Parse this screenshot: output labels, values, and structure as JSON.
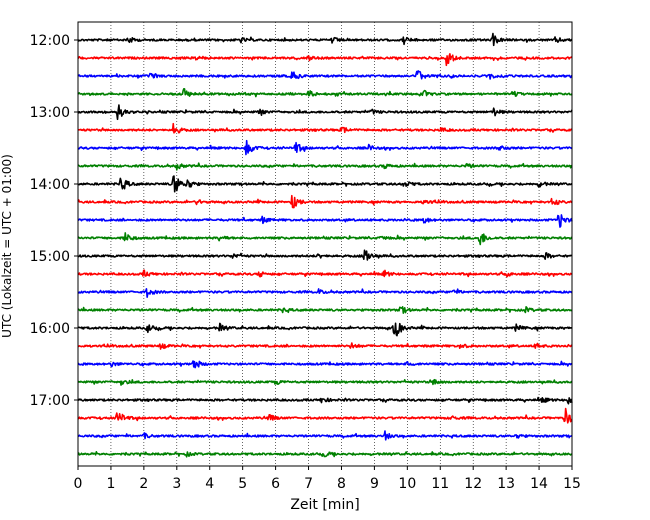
{
  "chart_data": {
    "type": "line",
    "title": "",
    "xlabel": "Zeit  [min]",
    "ylabel": "UTC (Lokalzeit = UTC + 01:00)",
    "xlim": [
      0,
      15
    ],
    "xticks": [
      0,
      1,
      2,
      3,
      4,
      5,
      6,
      7,
      8,
      9,
      10,
      11,
      12,
      13,
      14,
      15
    ],
    "yticks": [
      "12:00",
      "13:00",
      "14:00",
      "15:00",
      "16:00",
      "17:00"
    ],
    "grid": "vertical-dotted",
    "trace_interval_minutes": 15,
    "color_cycle": [
      "#000000",
      "#ff0000",
      "#0000ff",
      "#008000"
    ],
    "series": [
      {
        "start": "12:00",
        "color": "#000000",
        "events": [
          {
            "t": 1.5,
            "amp": 0.25
          },
          {
            "t": 4.9,
            "amp": 0.2
          },
          {
            "t": 7.7,
            "amp": 0.2
          },
          {
            "t": 9.9,
            "amp": 0.25
          },
          {
            "t": 12.6,
            "amp": 0.35
          },
          {
            "t": 14.5,
            "amp": 0.2
          }
        ]
      },
      {
        "start": "12:15",
        "color": "#ff0000",
        "events": [
          {
            "t": 11.2,
            "amp": 0.6
          },
          {
            "t": 3.6,
            "amp": 0.15
          },
          {
            "t": 7.0,
            "amp": 0.15
          }
        ]
      },
      {
        "start": "12:30",
        "color": "#0000ff",
        "events": [
          {
            "t": 6.5,
            "amp": 0.35
          },
          {
            "t": 10.3,
            "amp": 0.45
          },
          {
            "t": 2.2,
            "amp": 0.15
          },
          {
            "t": 12.5,
            "amp": 0.15
          }
        ]
      },
      {
        "start": "12:45",
        "color": "#008000",
        "events": [
          {
            "t": 3.2,
            "amp": 0.4
          },
          {
            "t": 7.0,
            "amp": 0.2
          },
          {
            "t": 10.5,
            "amp": 0.2
          },
          {
            "t": 13.2,
            "amp": 0.15
          }
        ]
      },
      {
        "start": "13:00",
        "color": "#000000",
        "events": [
          {
            "t": 1.2,
            "amp": 0.55
          },
          {
            "t": 12.6,
            "amp": 0.3
          },
          {
            "t": 5.5,
            "amp": 0.15
          },
          {
            "t": 8.9,
            "amp": 0.15
          }
        ]
      },
      {
        "start": "13:15",
        "color": "#ff0000",
        "events": [
          {
            "t": 2.9,
            "amp": 0.4
          },
          {
            "t": 8.0,
            "amp": 0.2
          },
          {
            "t": 11.0,
            "amp": 0.15
          }
        ]
      },
      {
        "start": "13:30",
        "color": "#0000ff",
        "events": [
          {
            "t": 5.1,
            "amp": 0.6
          },
          {
            "t": 6.6,
            "amp": 0.4
          },
          {
            "t": 8.8,
            "amp": 0.2
          },
          {
            "t": 12.8,
            "amp": 0.2
          }
        ]
      },
      {
        "start": "13:45",
        "color": "#008000",
        "events": [
          {
            "t": 3.0,
            "amp": 0.2
          },
          {
            "t": 9.3,
            "amp": 0.15
          },
          {
            "t": 11.8,
            "amp": 0.15
          }
        ]
      },
      {
        "start": "14:00",
        "color": "#000000",
        "events": [
          {
            "t": 1.3,
            "amp": 0.6
          },
          {
            "t": 2.9,
            "amp": 0.85
          },
          {
            "t": 3.3,
            "amp": 0.4
          },
          {
            "t": 9.9,
            "amp": 0.25
          },
          {
            "t": 14.0,
            "amp": 0.2
          }
        ]
      },
      {
        "start": "14:15",
        "color": "#ff0000",
        "events": [
          {
            "t": 6.5,
            "amp": 0.6
          },
          {
            "t": 14.4,
            "amp": 0.3
          },
          {
            "t": 3.6,
            "amp": 0.15
          },
          {
            "t": 10.5,
            "amp": 0.15
          }
        ]
      },
      {
        "start": "14:30",
        "color": "#0000ff",
        "events": [
          {
            "t": 14.6,
            "amp": 0.65
          },
          {
            "t": 5.6,
            "amp": 0.2
          },
          {
            "t": 10.5,
            "amp": 0.2
          }
        ]
      },
      {
        "start": "14:45",
        "color": "#008000",
        "events": [
          {
            "t": 1.4,
            "amp": 0.5
          },
          {
            "t": 12.2,
            "amp": 0.55
          },
          {
            "t": 4.3,
            "amp": 0.15
          },
          {
            "t": 9.2,
            "amp": 0.15
          }
        ]
      },
      {
        "start": "15:00",
        "color": "#000000",
        "events": [
          {
            "t": 8.7,
            "amp": 0.6
          },
          {
            "t": 14.2,
            "amp": 0.2
          },
          {
            "t": 4.7,
            "amp": 0.15
          },
          {
            "t": 7.3,
            "amp": 0.15
          }
        ]
      },
      {
        "start": "15:15",
        "color": "#ff0000",
        "events": [
          {
            "t": 2.0,
            "amp": 0.2
          },
          {
            "t": 5.5,
            "amp": 0.2
          },
          {
            "t": 9.3,
            "amp": 0.2
          },
          {
            "t": 13.0,
            "amp": 0.15
          }
        ]
      },
      {
        "start": "15:30",
        "color": "#0000ff",
        "events": [
          {
            "t": 2.1,
            "amp": 0.3
          },
          {
            "t": 7.3,
            "amp": 0.15
          },
          {
            "t": 11.4,
            "amp": 0.15
          }
        ]
      },
      {
        "start": "15:45",
        "color": "#008000",
        "events": [
          {
            "t": 9.8,
            "amp": 0.25
          },
          {
            "t": 6.2,
            "amp": 0.15
          },
          {
            "t": 13.6,
            "amp": 0.15
          }
        ]
      },
      {
        "start": "16:00",
        "color": "#000000",
        "events": [
          {
            "t": 9.6,
            "amp": 0.95
          },
          {
            "t": 2.1,
            "amp": 0.25
          },
          {
            "t": 4.3,
            "amp": 0.25
          },
          {
            "t": 13.3,
            "amp": 0.2
          }
        ]
      },
      {
        "start": "16:15",
        "color": "#ff0000",
        "events": [
          {
            "t": 2.5,
            "amp": 0.2
          },
          {
            "t": 8.3,
            "amp": 0.2
          },
          {
            "t": 11.6,
            "amp": 0.15
          },
          {
            "t": 13.9,
            "amp": 0.15
          }
        ]
      },
      {
        "start": "16:30",
        "color": "#0000ff",
        "events": [
          {
            "t": 3.5,
            "amp": 0.45
          },
          {
            "t": 1.0,
            "amp": 0.15
          },
          {
            "t": 10.0,
            "amp": 0.15
          }
        ]
      },
      {
        "start": "16:45",
        "color": "#008000",
        "events": [
          {
            "t": 1.3,
            "amp": 0.2
          },
          {
            "t": 6.0,
            "amp": 0.15
          },
          {
            "t": 10.8,
            "amp": 0.2
          }
        ]
      },
      {
        "start": "17:00",
        "color": "#000000",
        "events": [
          {
            "t": 14.9,
            "amp": 0.5
          },
          {
            "t": 7.4,
            "amp": 0.2
          },
          {
            "t": 14.1,
            "amp": 0.15
          }
        ]
      },
      {
        "start": "17:15",
        "color": "#ff0000",
        "events": [
          {
            "t": 1.2,
            "amp": 0.6
          },
          {
            "t": 14.8,
            "amp": 0.6
          },
          {
            "t": 5.8,
            "amp": 0.2
          },
          {
            "t": 11.3,
            "amp": 0.15
          }
        ]
      },
      {
        "start": "17:30",
        "color": "#0000ff",
        "events": [
          {
            "t": 9.3,
            "amp": 0.3
          },
          {
            "t": 2.0,
            "amp": 0.15
          },
          {
            "t": 13.3,
            "amp": 0.15
          }
        ]
      },
      {
        "start": "17:45",
        "color": "#008000",
        "events": [
          {
            "t": 7.5,
            "amp": 0.15
          },
          {
            "t": 3.3,
            "amp": 0.12
          }
        ]
      }
    ]
  }
}
